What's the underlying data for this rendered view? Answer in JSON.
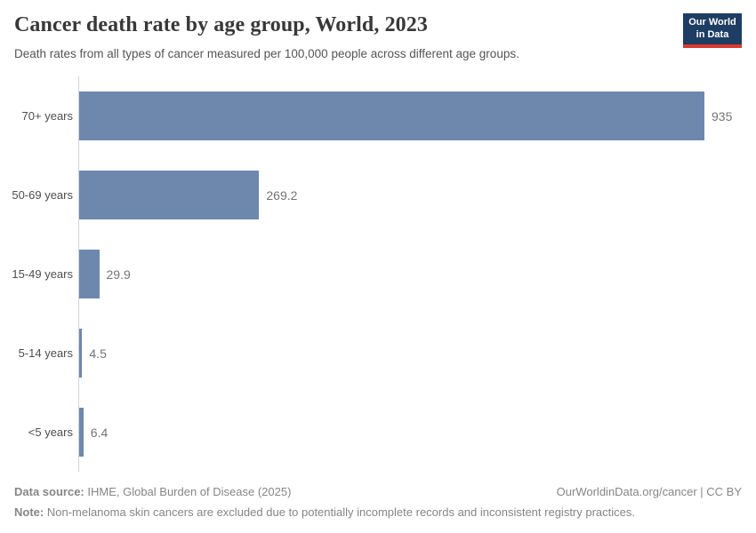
{
  "header": {
    "title": "Cancer death rate by age group, World, 2023",
    "subtitle": "Death rates from all types of cancer measured per 100,000 people across different age groups.",
    "logo": {
      "line1": "Our World",
      "line2": "in Data"
    }
  },
  "chart_data": {
    "type": "bar",
    "orientation": "horizontal",
    "title": "Cancer death rate by age group, World, 2023",
    "categories": [
      "70+ years",
      "50-69 years",
      "15-49 years",
      "5-14 years",
      "<5 years"
    ],
    "values": [
      935,
      269.2,
      29.9,
      4.5,
      6.4
    ],
    "value_labels": [
      "935",
      "269.2",
      "29.9",
      "4.5",
      "6.4"
    ],
    "xlabel": "",
    "ylabel": "",
    "xlim": [
      0,
      935
    ],
    "grid": false,
    "legend": "none",
    "bar_color": "#6e88ad",
    "unit": "deaths per 100,000 people"
  },
  "footer": {
    "datasource_label": "Data source:",
    "datasource_text": " IHME, Global Burden of Disease (2025)",
    "rights": "OurWorldinData.org/cancer | CC BY",
    "note_label": "Note:",
    "note_text": " Non-melanoma skin cancers are excluded due to potentially incomplete records and inconsistent registry practices."
  }
}
